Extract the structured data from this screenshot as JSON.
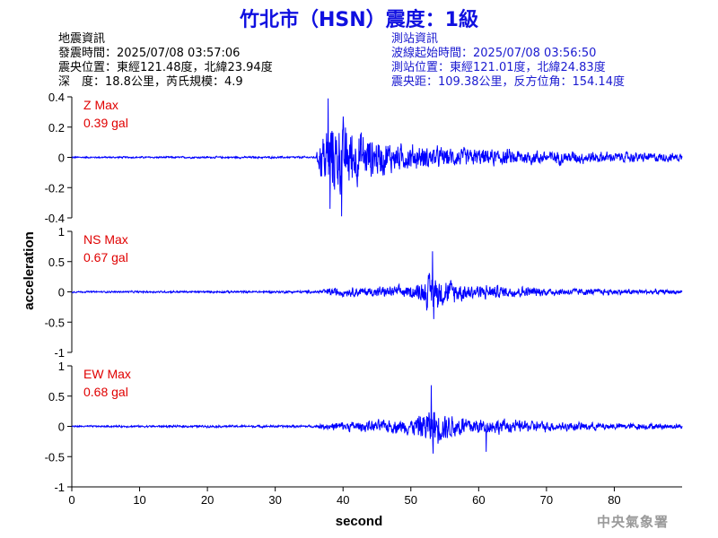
{
  "header": {
    "title": "竹北市（HSN）震度：1級"
  },
  "earthquake_info": {
    "heading": "地震資訊",
    "time": "發震時間：2025/07/08 03:57:06",
    "location": "震央位置：東經121.48度，北緯23.94度",
    "depth_magnitude": "深　度：18.8公里，芮氏規模：4.9"
  },
  "station_info": {
    "heading": "測站資訊",
    "wave_start": "波線起始時間：2025/07/08 03:56:50",
    "location": "測站位置：東經121.01度，北緯24.83度",
    "distance_azimuth": "震央距：109.38公里，反方位角：154.14度"
  },
  "credit": "中央氣象署",
  "colors": {
    "title": "#1010e0",
    "trace": "#0000ff",
    "max_label": "#e00000"
  },
  "chart_data": {
    "type": "line",
    "xlabel": "second",
    "ylabel": "acceleration",
    "xlim": [
      0,
      90
    ],
    "x_ticks": [
      "0",
      "10",
      "20",
      "30",
      "40",
      "50",
      "60",
      "70",
      "80"
    ],
    "x_tick_values": [
      0,
      10,
      20,
      30,
      40,
      50,
      60,
      70,
      80
    ],
    "panels": [
      {
        "component": "Z",
        "max_label": "Z Max",
        "max_value": "0.39 gal",
        "ylim": [
          -0.4,
          0.4
        ],
        "y_ticks": [
          "0.4",
          "0.2",
          "0",
          "-0.2",
          "-0.4"
        ],
        "y_tick_values": [
          0.4,
          0.2,
          0,
          -0.2,
          -0.4
        ],
        "envelope": [
          [
            0,
            0.008
          ],
          [
            36,
            0.01
          ],
          [
            37,
            0.28
          ],
          [
            39,
            0.37
          ],
          [
            41,
            0.3
          ],
          [
            44,
            0.2
          ],
          [
            48,
            0.13
          ],
          [
            52,
            0.11
          ],
          [
            56,
            0.09
          ],
          [
            62,
            0.08
          ],
          [
            70,
            0.065
          ],
          [
            80,
            0.05
          ],
          [
            90,
            0.04
          ]
        ],
        "peaks": [
          [
            37.8,
            0.39
          ],
          [
            38.1,
            -0.34
          ],
          [
            39.8,
            -0.39
          ]
        ]
      },
      {
        "component": "NS",
        "max_label": "NS Max",
        "max_value": "0.67 gal",
        "ylim": [
          -1,
          1
        ],
        "y_ticks": [
          "1",
          "0.5",
          "0",
          "-0.5",
          "-1"
        ],
        "y_tick_values": [
          1,
          0.5,
          0,
          -0.5,
          -1
        ],
        "envelope": [
          [
            0,
            0.02
          ],
          [
            36,
            0.03
          ],
          [
            38,
            0.1
          ],
          [
            45,
            0.12
          ],
          [
            50,
            0.15
          ],
          [
            52,
            0.3
          ],
          [
            53,
            0.5
          ],
          [
            55,
            0.32
          ],
          [
            58,
            0.2
          ],
          [
            62,
            0.16
          ],
          [
            70,
            0.1
          ],
          [
            80,
            0.07
          ],
          [
            90,
            0.05
          ]
        ],
        "peaks": [
          [
            53.2,
            0.67
          ],
          [
            53.4,
            -0.45
          ]
        ]
      },
      {
        "component": "EW",
        "max_label": "EW Max",
        "max_value": "0.68 gal",
        "ylim": [
          -1,
          1
        ],
        "y_ticks": [
          "1",
          "0.5",
          "0",
          "-0.5",
          "-1"
        ],
        "y_tick_values": [
          1,
          0.5,
          0,
          -0.5,
          -1
        ],
        "envelope": [
          [
            0,
            0.02
          ],
          [
            36,
            0.03
          ],
          [
            38,
            0.1
          ],
          [
            45,
            0.14
          ],
          [
            50,
            0.18
          ],
          [
            52,
            0.35
          ],
          [
            53,
            0.5
          ],
          [
            55,
            0.33
          ],
          [
            58,
            0.25
          ],
          [
            62,
            0.18
          ],
          [
            70,
            0.12
          ],
          [
            80,
            0.08
          ],
          [
            90,
            0.06
          ]
        ],
        "peaks": [
          [
            53.0,
            0.68
          ],
          [
            53.3,
            -0.45
          ],
          [
            61.1,
            -0.42
          ]
        ]
      }
    ]
  }
}
